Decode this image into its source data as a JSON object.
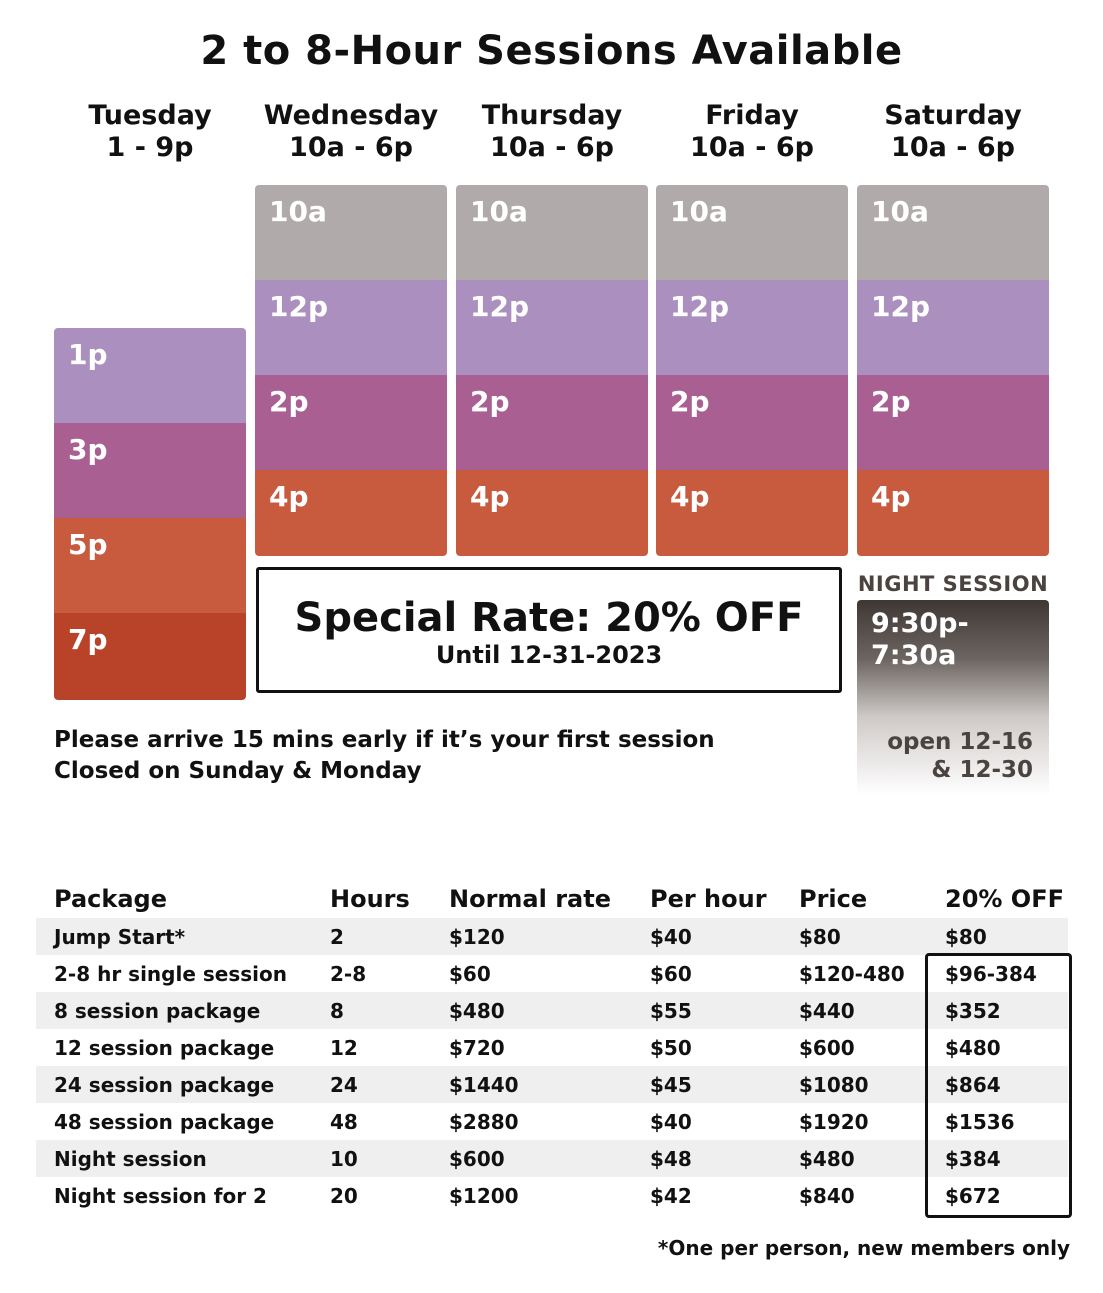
{
  "title": "2 to 8-Hour Sessions Available",
  "days": [
    {
      "name": "Tuesday",
      "hours": "1 - 9p",
      "slots": [
        "1p",
        "3p",
        "5p",
        "7p"
      ]
    },
    {
      "name": "Wednesday",
      "hours": "10a - 6p",
      "slots": [
        "10a",
        "12p",
        "2p",
        "4p"
      ]
    },
    {
      "name": "Thursday",
      "hours": "10a - 6p",
      "slots": [
        "10a",
        "12p",
        "2p",
        "4p"
      ]
    },
    {
      "name": "Friday",
      "hours": "10a - 6p",
      "slots": [
        "10a",
        "12p",
        "2p",
        "4p"
      ]
    },
    {
      "name": "Saturday",
      "hours": "10a - 6p",
      "slots": [
        "10a",
        "12p",
        "2p",
        "4p"
      ]
    }
  ],
  "special": {
    "headline": "Special Rate: 20% OFF",
    "until": "Until 12-31-2023"
  },
  "night": {
    "label": "NIGHT SESSION",
    "time_line1": "9:30p-",
    "time_line2": "7:30a",
    "open_line1": "open 12-16",
    "open_line2": "& 12-30"
  },
  "notes": [
    "Please arrive 15 mins early if it’s your first session",
    "Closed on Sunday & Monday"
  ],
  "table": {
    "headers": [
      "Package",
      "Hours",
      "Normal rate",
      "Per hour",
      "Price",
      "20% OFF"
    ],
    "rows": [
      [
        "Jump Start*",
        "2",
        "$120",
        "$40",
        "$80",
        "$80"
      ],
      [
        "2-8 hr single session",
        "2-8",
        "$60",
        "$60",
        "$120-480",
        "$96-384"
      ],
      [
        "8 session package",
        "8",
        "$480",
        "$55",
        "$440",
        "$352"
      ],
      [
        "12 session package",
        "12",
        "$720",
        "$50",
        "$600",
        "$480"
      ],
      [
        "24 session package",
        "24",
        "$1440",
        "$45",
        "$1080",
        "$864"
      ],
      [
        "48 session package",
        "48",
        "$2880",
        "$40",
        "$1920",
        "$1536"
      ],
      [
        "Night session",
        "10",
        "$600",
        "$48",
        "$480",
        "$384"
      ],
      [
        "Night session for 2",
        "20",
        "$1200",
        "$42",
        "$840",
        "$672"
      ]
    ]
  },
  "footnote": "*One per person, new members only"
}
